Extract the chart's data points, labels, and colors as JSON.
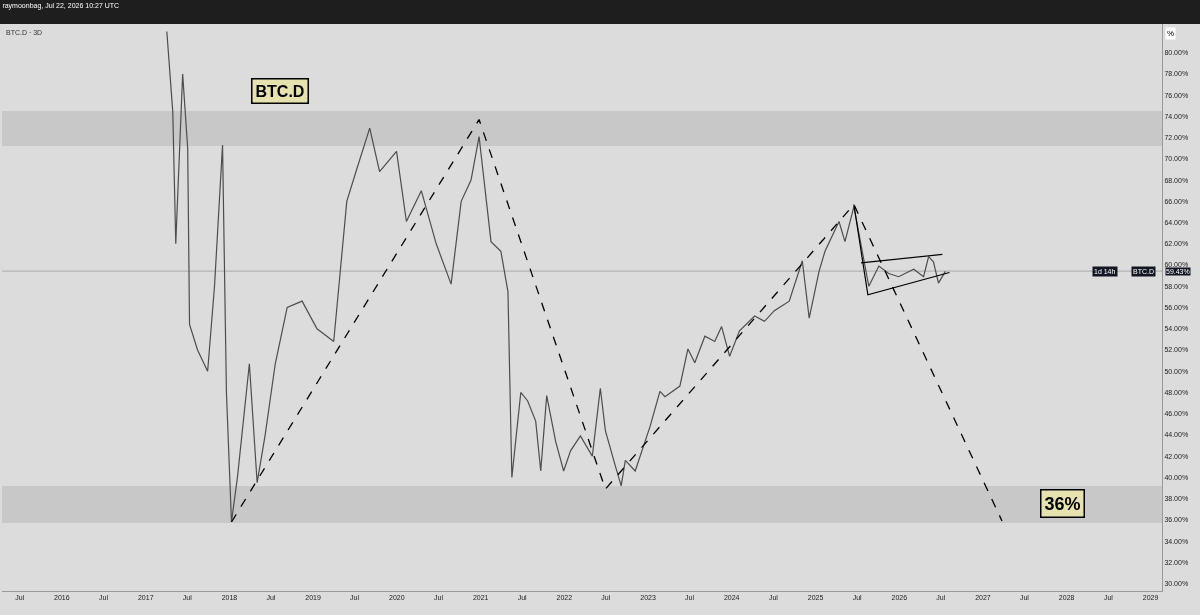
{
  "chart_data": {
    "type": "line",
    "title": "raymoonbag, Jul 22, 2026 10:27 UTC",
    "subtitle": "BTC.D · 3D",
    "xlim": [
      "2015-04-15",
      "2029-02-20"
    ],
    "ylim": [
      29.3,
      82.7
    ],
    "xticks": [
      {
        "value": "2015-07-01",
        "label": "Jul"
      },
      {
        "value": "2016-01-01",
        "label": "2016"
      },
      {
        "value": "2016-07-01",
        "label": "Jul"
      },
      {
        "value": "2017-01-01",
        "label": "2017"
      },
      {
        "value": "2017-07-01",
        "label": "Jul"
      },
      {
        "value": "2018-01-01",
        "label": "2018"
      },
      {
        "value": "2018-07-01",
        "label": "Jul"
      },
      {
        "value": "2019-01-01",
        "label": "2019"
      },
      {
        "value": "2019-07-01",
        "label": "Jul"
      },
      {
        "value": "2020-01-01",
        "label": "2020"
      },
      {
        "value": "2020-07-01",
        "label": "Jul"
      },
      {
        "value": "2021-01-01",
        "label": "2021"
      },
      {
        "value": "2021-07-01",
        "label": "Jul"
      },
      {
        "value": "2022-01-01",
        "label": "2022"
      },
      {
        "value": "2022-07-01",
        "label": "Jul"
      },
      {
        "value": "2023-01-01",
        "label": "2023"
      },
      {
        "value": "2023-07-01",
        "label": "Jul"
      },
      {
        "value": "2024-01-01",
        "label": "2024"
      },
      {
        "value": "2024-07-01",
        "label": "Jul"
      },
      {
        "value": "2025-01-01",
        "label": "2025"
      },
      {
        "value": "2025-07-01",
        "label": "Jul"
      },
      {
        "value": "2026-01-01",
        "label": "2026"
      },
      {
        "value": "2026-07-01",
        "label": "Jul"
      },
      {
        "value": "2027-01-01",
        "label": "2027"
      },
      {
        "value": "2027-07-01",
        "label": "Jul"
      },
      {
        "value": "2028-01-01",
        "label": "2028"
      },
      {
        "value": "2028-07-01",
        "label": "Jul"
      },
      {
        "value": "2029-01-01",
        "label": "2029"
      }
    ],
    "yticks": [
      {
        "value": 30,
        "label": "30.00%"
      },
      {
        "value": 32,
        "label": "32.00%"
      },
      {
        "value": 34,
        "label": "34.00%"
      },
      {
        "value": 36,
        "label": "36.00%"
      },
      {
        "value": 38,
        "label": "38.00%"
      },
      {
        "value": 40,
        "label": "40.00%"
      },
      {
        "value": 42,
        "label": "42.00%"
      },
      {
        "value": 44,
        "label": "44.00%"
      },
      {
        "value": 46,
        "label": "46.00%"
      },
      {
        "value": 48,
        "label": "48.00%"
      },
      {
        "value": 50,
        "label": "50.00%"
      },
      {
        "value": 52,
        "label": "52.00%"
      },
      {
        "value": 54,
        "label": "54.00%"
      },
      {
        "value": 56,
        "label": "56.00%"
      },
      {
        "value": 58,
        "label": "58.00%"
      },
      {
        "value": 60,
        "label": "60.00%"
      },
      {
        "value": 62,
        "label": "62.00%"
      },
      {
        "value": 64,
        "label": "64.00%"
      },
      {
        "value": 66,
        "label": "66.00%"
      },
      {
        "value": 68,
        "label": "68.00%"
      },
      {
        "value": 70,
        "label": "70.00%"
      },
      {
        "value": 72,
        "label": "72.00%"
      },
      {
        "value": 74,
        "label": "74.00%"
      },
      {
        "value": 76,
        "label": "76.00%"
      },
      {
        "value": 78,
        "label": "78.00%"
      },
      {
        "value": 80,
        "label": "80.00%"
      }
    ],
    "series": [
      {
        "color": "#4d4d4d",
        "line_style": "solid",
        "x": [
          "2017-04-03",
          "2017-04-29",
          "2017-05-12",
          "2017-06-11",
          "2017-07-03",
          "2017-07-11",
          "2017-08-15",
          "2017-09-28",
          "2017-10-28",
          "2017-12-02",
          "2017-12-19",
          "2018-01-10",
          "2018-02-05",
          "2018-03-29",
          "2018-05-02",
          "2018-06-06",
          "2018-07-20",
          "2018-09-10",
          "2018-11-14",
          "2019-01-18",
          "2019-04-01",
          "2019-05-28",
          "2019-07-10",
          "2019-09-05",
          "2019-10-18",
          "2019-12-31",
          "2020-02-12",
          "2020-04-17",
          "2020-06-21",
          "2020-08-25",
          "2020-10-08",
          "2020-11-20",
          "2020-12-25",
          "2021-02-15",
          "2021-03-30",
          "2021-04-30",
          "2021-05-17",
          "2021-06-25",
          "2021-07-25",
          "2021-08-29",
          "2021-09-20",
          "2021-10-16",
          "2021-11-24",
          "2021-12-29",
          "2022-01-28",
          "2022-03-12",
          "2022-05-03",
          "2022-06-07",
          "2022-06-29",
          "2022-08-11",
          "2022-09-06",
          "2022-09-24",
          "2022-11-06",
          "2023-01-10",
          "2023-02-22",
          "2023-03-16",
          "2023-05-20",
          "2023-06-24",
          "2023-07-24",
          "2023-09-06",
          "2023-10-19",
          "2023-11-18",
          "2023-12-23",
          "2024-02-04",
          "2024-04-10",
          "2024-05-23",
          "2024-07-05",
          "2024-09-08",
          "2024-11-04",
          "2024-12-04",
          "2025-01-16",
          "2025-02-11",
          "2025-04-13",
          "2025-05-09",
          "2025-06-17",
          "2025-08-21",
          "2025-10-04",
          "2025-11-16",
          "2025-12-29",
          "2026-03-05",
          "2026-04-17",
          "2026-05-09",
          "2026-05-30",
          "2026-06-21",
          "2026-07-21"
        ],
        "values": [
          82,
          74.4,
          62,
          78,
          71,
          54.4,
          52,
          50,
          58,
          71.3,
          48,
          35.8,
          40,
          50.7,
          39.5,
          44,
          50.7,
          56,
          56.6,
          54,
          52.8,
          66,
          69,
          72.9,
          68.8,
          70.7,
          64.1,
          67,
          62,
          58.2,
          66,
          68,
          72.1,
          62.2,
          61.3,
          57.5,
          40,
          48,
          47.2,
          45.3,
          40.6,
          47.7,
          43.4,
          40.6,
          42.5,
          43.9,
          42,
          48.4,
          44.4,
          41.1,
          39.2,
          41.6,
          40.6,
          44.8,
          48.1,
          47.6,
          48.6,
          52.1,
          50.8,
          53.3,
          52.8,
          54.2,
          51.4,
          53.8,
          55.2,
          54.7,
          55.7,
          56.6,
          60.4,
          55,
          59.4,
          61.3,
          64.1,
          62.2,
          65.5,
          58,
          59.9,
          59.2,
          58.9,
          59.6,
          58.9,
          60.8,
          60.3,
          58.3,
          59.4
        ]
      },
      {
        "color": "#000000",
        "line_style": "dashed",
        "x": [
          "2018-01-10",
          "2020-12-25",
          "2022-06-29",
          "2025-06-17",
          "2027-03-25"
        ],
        "values": [
          35.8,
          73.7,
          38.9,
          65.7,
          35.9
        ]
      },
      {
        "color": "#000000",
        "line_style": "solid",
        "x": [
          "2025-06-17",
          "2025-08-17",
          "2026-08-08"
        ],
        "values": [
          65.7,
          57.2,
          59.3
        ]
      },
      {
        "color": "#000000",
        "line_style": "solid",
        "x": [
          "2025-07-18",
          "2026-07-08"
        ],
        "values": [
          60.2,
          61.0
        ]
      }
    ],
    "bands": [
      {
        "axis": "y",
        "from": 71.2,
        "to": 74.5,
        "color": "#c8c8c8"
      },
      {
        "axis": "y",
        "from": 35.7,
        "to": 39.2,
        "color": "#c8c8c8"
      }
    ],
    "ref_lines": [
      {
        "axis": "y",
        "value": 59.43,
        "label": "59.43%",
        "color": "#aaaaaa"
      }
    ],
    "annotations": [
      "BTC.D",
      {
        "text": "36%",
        "x": "2027-12-15",
        "y": 37.5
      },
      "BTC.D",
      "1d 14h",
      "%"
    ]
  }
}
